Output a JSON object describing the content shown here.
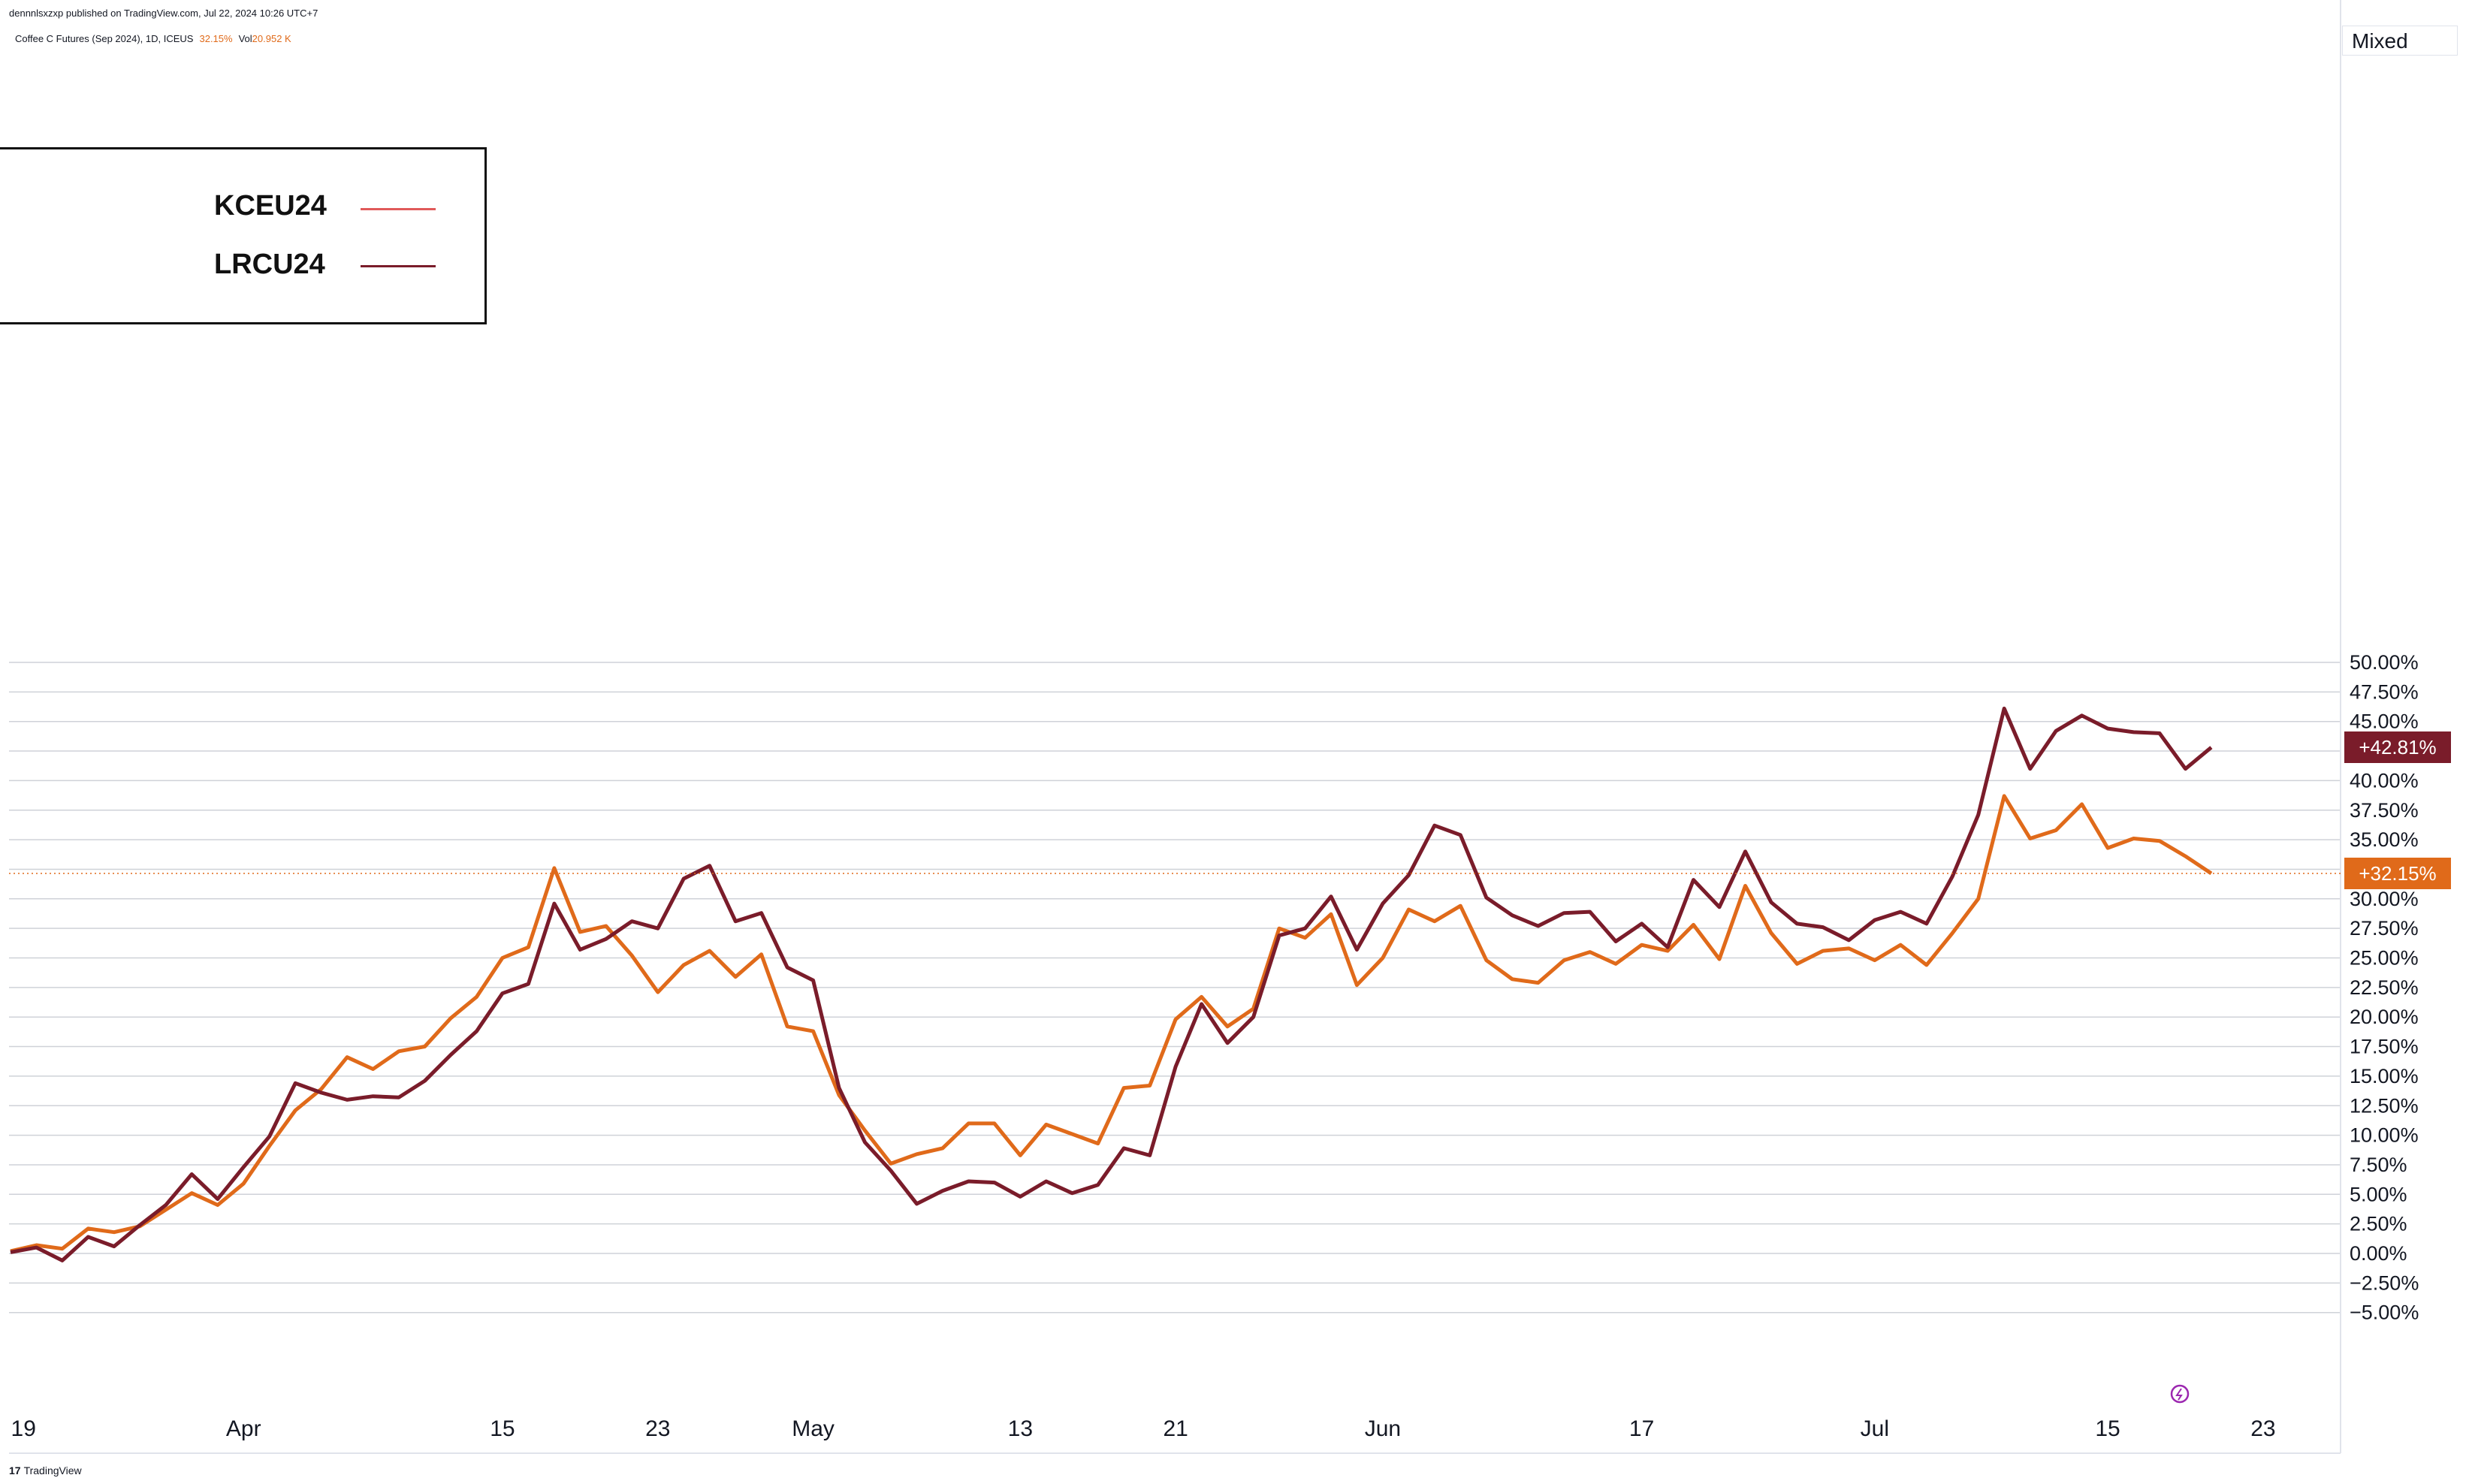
{
  "header": {
    "published": "dennnlsxzxp published on TradingView.com, Jul 22, 2024 10:26 UTC+7",
    "symbol": "Coffee C Futures (Sep 2024), 1D, ICEUS",
    "symbol_value": "32.15%",
    "volume_label": "Vol",
    "volume_value": "20.952 K"
  },
  "scale_mode": "Mixed",
  "footer": {
    "logo_mark": "17",
    "logo_text": "TradingView"
  },
  "colors": {
    "kceu": "#e06a1a",
    "lrcu": "#7a1c2a",
    "legend_kceu": "#e05a5a",
    "grid": "#cfd2d8"
  },
  "legend": {
    "items": [
      {
        "label": "KCEU24"
      },
      {
        "label": "LRCU24"
      }
    ]
  },
  "price_tags": [
    {
      "label": "+42.81%",
      "value": 42.81,
      "color": "#7a1c2a"
    },
    {
      "label": "+32.15%",
      "value": 32.15,
      "color": "#e06a1a"
    }
  ],
  "chart_data": {
    "type": "line",
    "y_unit": "%",
    "ylim": [
      -6,
      52
    ],
    "yticks": [
      -5,
      -2.5,
      0,
      2.5,
      5,
      7.5,
      10,
      12.5,
      15,
      17.5,
      20,
      22.5,
      25,
      27.5,
      30,
      32.5,
      35,
      37.5,
      40,
      42.5,
      45,
      47.5,
      50
    ],
    "ytick_labels": [
      "−5.00%",
      "−2.50%",
      "0.00%",
      "2.50%",
      "5.00%",
      "7.50%",
      "10.00%",
      "12.50%",
      "15.00%",
      "17.50%",
      "20.00%",
      "22.50%",
      "25.00%",
      "27.50%",
      "30.00%",
      "32.50%",
      "35.00%",
      "37.50%",
      "40.00%",
      "42.50%",
      "45.00%",
      "47.50%",
      "50.00%"
    ],
    "xlim": [
      0,
      101
    ],
    "xticks": [
      {
        "label": "19",
        "bar": 0.5
      },
      {
        "label": "Apr",
        "bar": 9
      },
      {
        "label": "15",
        "bar": 19
      },
      {
        "label": "23",
        "bar": 25
      },
      {
        "label": "May",
        "bar": 31
      },
      {
        "label": "13",
        "bar": 39
      },
      {
        "label": "21",
        "bar": 45
      },
      {
        "label": "Jun",
        "bar": 53
      },
      {
        "label": "17",
        "bar": 63
      },
      {
        "label": "Jul",
        "bar": 72
      },
      {
        "label": "15",
        "bar": 81
      },
      {
        "label": "23",
        "bar": 87
      }
    ],
    "grid": true,
    "legend_position": "top-left",
    "series": [
      {
        "name": "KCEU24",
        "values": [
          0.2,
          0.7,
          0.4,
          2.1,
          1.8,
          2.3,
          3.7,
          5.1,
          4.1,
          5.9,
          9.1,
          12.1,
          13.9,
          16.6,
          15.6,
          17.1,
          17.5,
          19.9,
          21.7,
          25.0,
          25.9,
          32.6,
          27.2,
          27.7,
          25.2,
          22.1,
          24.4,
          25.6,
          23.4,
          25.3,
          19.2,
          18.8,
          13.4,
          10.4,
          7.6,
          8.4,
          8.9,
          11.0,
          11.0,
          8.3,
          10.9,
          10.1,
          9.3,
          14.0,
          14.2,
          19.8,
          21.7,
          19.2,
          20.7,
          27.5,
          26.7,
          28.7,
          22.7,
          25.0,
          29.1,
          28.1,
          29.4,
          24.8,
          23.2,
          22.9,
          24.8,
          25.5,
          24.5,
          26.1,
          25.6,
          27.8,
          24.9,
          31.1,
          27.1,
          24.5,
          25.6,
          25.8,
          24.8,
          26.1,
          24.4,
          27.1,
          30.0,
          38.7,
          35.1,
          35.8,
          38.0,
          34.3,
          35.1,
          34.9,
          33.6,
          32.15
        ]
      },
      {
        "name": "LRCU24",
        "values": [
          0.1,
          0.5,
          -0.6,
          1.4,
          0.6,
          2.4,
          4.1,
          6.7,
          4.6,
          7.3,
          9.9,
          14.4,
          13.6,
          13.0,
          13.3,
          13.2,
          14.6,
          16.8,
          18.8,
          22.0,
          22.8,
          29.6,
          25.7,
          26.6,
          28.1,
          27.5,
          31.7,
          32.8,
          28.1,
          28.8,
          24.2,
          23.1,
          14.0,
          9.4,
          7.0,
          4.2,
          5.3,
          6.1,
          6.0,
          4.8,
          6.1,
          5.1,
          5.8,
          8.9,
          8.3,
          15.8,
          21.1,
          17.8,
          20.0,
          26.9,
          27.5,
          30.2,
          25.7,
          29.6,
          32.0,
          36.2,
          35.4,
          30.1,
          28.6,
          27.7,
          28.8,
          28.9,
          26.4,
          27.9,
          25.9,
          31.6,
          29.3,
          34.0,
          29.7,
          27.9,
          27.6,
          26.5,
          28.2,
          28.9,
          27.9,
          31.9,
          37.1,
          46.1,
          41.0,
          44.2,
          45.5,
          44.4,
          44.1,
          44.0,
          41.0,
          42.81
        ]
      }
    ]
  }
}
